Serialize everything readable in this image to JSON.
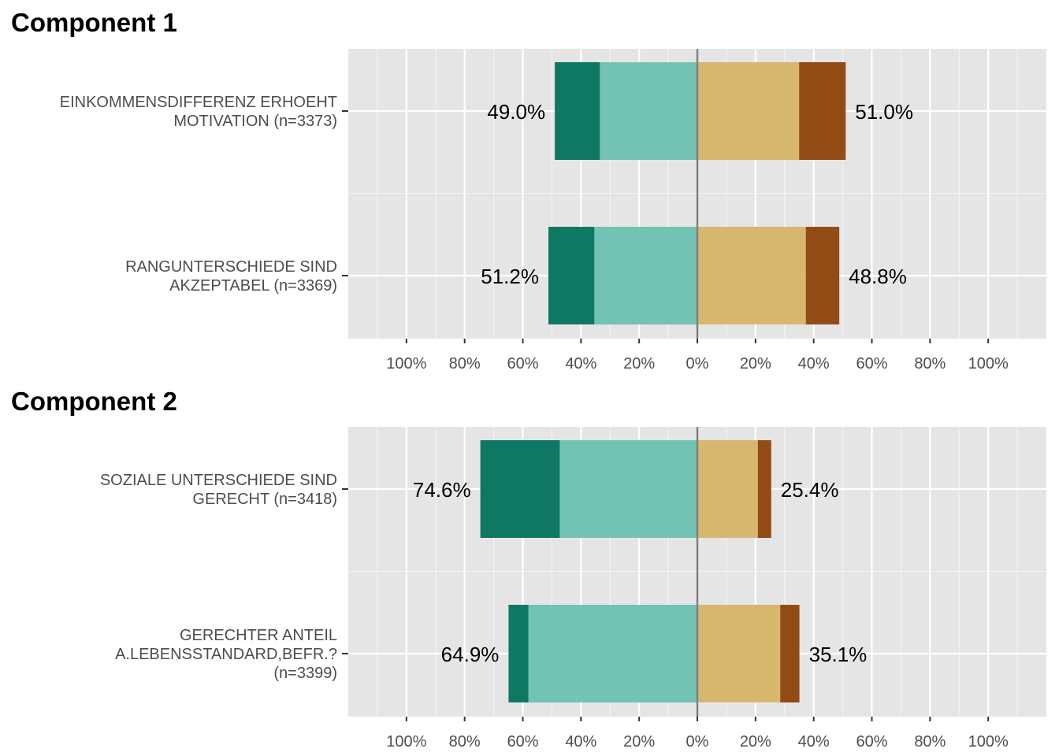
{
  "chart_data": [
    {
      "type": "bar",
      "title": "Component 1",
      "orientation": "horizontal-diverging",
      "xlim": [
        -1.2,
        1.2
      ],
      "x_ticks": [
        -1.0,
        -0.8,
        -0.6,
        -0.4,
        -0.2,
        0,
        0.2,
        0.4,
        0.6,
        0.8,
        1.0
      ],
      "x_tick_labels": [
        "100%",
        "80%",
        "60%",
        "40%",
        "20%",
        "0%",
        "20%",
        "40%",
        "60%",
        "80%",
        "100%"
      ],
      "grid": true,
      "colors": {
        "strong_left": "#0f7863",
        "left": "#72c3b3",
        "right": "#d7b76d",
        "strong_right": "#934b16"
      },
      "rows": [
        {
          "category": [
            "EINKOMMENSDIFFERENZ ERHOEHT",
            "MOTIVATION (n=3373)"
          ],
          "strong_left": 15.5,
          "left": 33.5,
          "right": 35.0,
          "strong_right": 16.0,
          "left_label": "49.0%",
          "right_label": "51.0%"
        },
        {
          "category": [
            "RANGUNTERSCHIEDE SIND",
            "AKZEPTABEL (n=3369)"
          ],
          "strong_left": 15.8,
          "left": 35.4,
          "right": 37.3,
          "strong_right": 11.5,
          "left_label": "51.2%",
          "right_label": "48.8%"
        }
      ]
    },
    {
      "type": "bar",
      "title": "Component 2",
      "orientation": "horizontal-diverging",
      "xlim": [
        -1.2,
        1.2
      ],
      "x_ticks": [
        -1.0,
        -0.8,
        -0.6,
        -0.4,
        -0.2,
        0,
        0.2,
        0.4,
        0.6,
        0.8,
        1.0
      ],
      "x_tick_labels": [
        "100%",
        "80%",
        "60%",
        "40%",
        "20%",
        "0%",
        "20%",
        "40%",
        "60%",
        "80%",
        "100%"
      ],
      "grid": true,
      "colors": {
        "strong_left": "#0f7863",
        "left": "#72c3b3",
        "right": "#d7b76d",
        "strong_right": "#934b16"
      },
      "rows": [
        {
          "category": [
            "SOZIALE UNTERSCHIEDE SIND",
            "GERECHT (n=3418)"
          ],
          "strong_left": 27.3,
          "left": 47.3,
          "right": 20.8,
          "strong_right": 4.6,
          "left_label": "74.6%",
          "right_label": "25.4%"
        },
        {
          "category": [
            "GERECHTER ANTEIL",
            "A.LEBENSSTANDARD,BEFR.?",
            "(n=3399)"
          ],
          "strong_left": 6.8,
          "left": 58.1,
          "right": 28.5,
          "strong_right": 6.6,
          "left_label": "64.9%",
          "right_label": "35.1%"
        }
      ]
    }
  ]
}
